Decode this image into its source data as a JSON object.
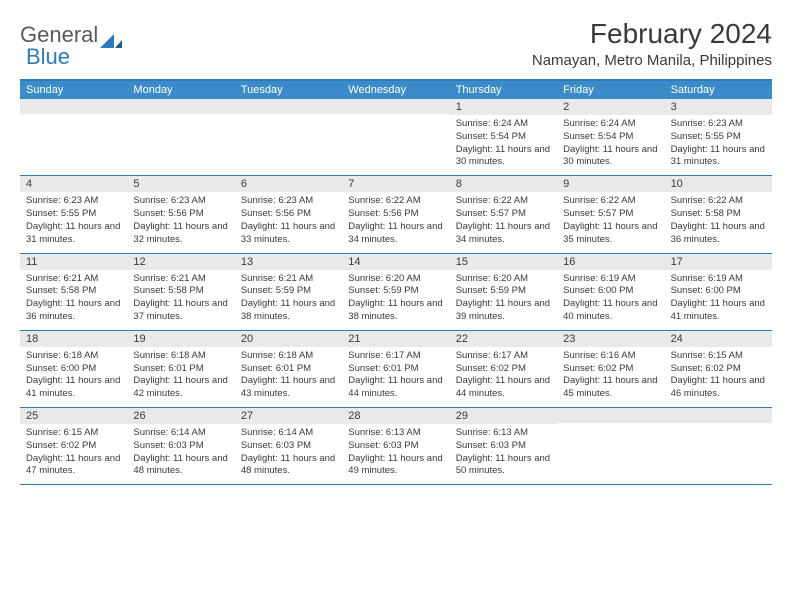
{
  "brand": {
    "part1": "General",
    "part2": "Blue"
  },
  "title": "February 2024",
  "location": "Namayan, Metro Manila, Philippines",
  "colors": {
    "accent": "#3b8bc9",
    "rule": "#2b7bbf",
    "daynum_bg": "#e9e9e9",
    "text": "#3a3a3a"
  },
  "weekdays": [
    "Sunday",
    "Monday",
    "Tuesday",
    "Wednesday",
    "Thursday",
    "Friday",
    "Saturday"
  ],
  "weeks": [
    [
      {
        "n": "",
        "sunrise": "",
        "sunset": "",
        "daylight": ""
      },
      {
        "n": "",
        "sunrise": "",
        "sunset": "",
        "daylight": ""
      },
      {
        "n": "",
        "sunrise": "",
        "sunset": "",
        "daylight": ""
      },
      {
        "n": "",
        "sunrise": "",
        "sunset": "",
        "daylight": ""
      },
      {
        "n": "1",
        "sunrise": "Sunrise: 6:24 AM",
        "sunset": "Sunset: 5:54 PM",
        "daylight": "Daylight: 11 hours and 30 minutes."
      },
      {
        "n": "2",
        "sunrise": "Sunrise: 6:24 AM",
        "sunset": "Sunset: 5:54 PM",
        "daylight": "Daylight: 11 hours and 30 minutes."
      },
      {
        "n": "3",
        "sunrise": "Sunrise: 6:23 AM",
        "sunset": "Sunset: 5:55 PM",
        "daylight": "Daylight: 11 hours and 31 minutes."
      }
    ],
    [
      {
        "n": "4",
        "sunrise": "Sunrise: 6:23 AM",
        "sunset": "Sunset: 5:55 PM",
        "daylight": "Daylight: 11 hours and 31 minutes."
      },
      {
        "n": "5",
        "sunrise": "Sunrise: 6:23 AM",
        "sunset": "Sunset: 5:56 PM",
        "daylight": "Daylight: 11 hours and 32 minutes."
      },
      {
        "n": "6",
        "sunrise": "Sunrise: 6:23 AM",
        "sunset": "Sunset: 5:56 PM",
        "daylight": "Daylight: 11 hours and 33 minutes."
      },
      {
        "n": "7",
        "sunrise": "Sunrise: 6:22 AM",
        "sunset": "Sunset: 5:56 PM",
        "daylight": "Daylight: 11 hours and 34 minutes."
      },
      {
        "n": "8",
        "sunrise": "Sunrise: 6:22 AM",
        "sunset": "Sunset: 5:57 PM",
        "daylight": "Daylight: 11 hours and 34 minutes."
      },
      {
        "n": "9",
        "sunrise": "Sunrise: 6:22 AM",
        "sunset": "Sunset: 5:57 PM",
        "daylight": "Daylight: 11 hours and 35 minutes."
      },
      {
        "n": "10",
        "sunrise": "Sunrise: 6:22 AM",
        "sunset": "Sunset: 5:58 PM",
        "daylight": "Daylight: 11 hours and 36 minutes."
      }
    ],
    [
      {
        "n": "11",
        "sunrise": "Sunrise: 6:21 AM",
        "sunset": "Sunset: 5:58 PM",
        "daylight": "Daylight: 11 hours and 36 minutes."
      },
      {
        "n": "12",
        "sunrise": "Sunrise: 6:21 AM",
        "sunset": "Sunset: 5:58 PM",
        "daylight": "Daylight: 11 hours and 37 minutes."
      },
      {
        "n": "13",
        "sunrise": "Sunrise: 6:21 AM",
        "sunset": "Sunset: 5:59 PM",
        "daylight": "Daylight: 11 hours and 38 minutes."
      },
      {
        "n": "14",
        "sunrise": "Sunrise: 6:20 AM",
        "sunset": "Sunset: 5:59 PM",
        "daylight": "Daylight: 11 hours and 38 minutes."
      },
      {
        "n": "15",
        "sunrise": "Sunrise: 6:20 AM",
        "sunset": "Sunset: 5:59 PM",
        "daylight": "Daylight: 11 hours and 39 minutes."
      },
      {
        "n": "16",
        "sunrise": "Sunrise: 6:19 AM",
        "sunset": "Sunset: 6:00 PM",
        "daylight": "Daylight: 11 hours and 40 minutes."
      },
      {
        "n": "17",
        "sunrise": "Sunrise: 6:19 AM",
        "sunset": "Sunset: 6:00 PM",
        "daylight": "Daylight: 11 hours and 41 minutes."
      }
    ],
    [
      {
        "n": "18",
        "sunrise": "Sunrise: 6:18 AM",
        "sunset": "Sunset: 6:00 PM",
        "daylight": "Daylight: 11 hours and 41 minutes."
      },
      {
        "n": "19",
        "sunrise": "Sunrise: 6:18 AM",
        "sunset": "Sunset: 6:01 PM",
        "daylight": "Daylight: 11 hours and 42 minutes."
      },
      {
        "n": "20",
        "sunrise": "Sunrise: 6:18 AM",
        "sunset": "Sunset: 6:01 PM",
        "daylight": "Daylight: 11 hours and 43 minutes."
      },
      {
        "n": "21",
        "sunrise": "Sunrise: 6:17 AM",
        "sunset": "Sunset: 6:01 PM",
        "daylight": "Daylight: 11 hours and 44 minutes."
      },
      {
        "n": "22",
        "sunrise": "Sunrise: 6:17 AM",
        "sunset": "Sunset: 6:02 PM",
        "daylight": "Daylight: 11 hours and 44 minutes."
      },
      {
        "n": "23",
        "sunrise": "Sunrise: 6:16 AM",
        "sunset": "Sunset: 6:02 PM",
        "daylight": "Daylight: 11 hours and 45 minutes."
      },
      {
        "n": "24",
        "sunrise": "Sunrise: 6:15 AM",
        "sunset": "Sunset: 6:02 PM",
        "daylight": "Daylight: 11 hours and 46 minutes."
      }
    ],
    [
      {
        "n": "25",
        "sunrise": "Sunrise: 6:15 AM",
        "sunset": "Sunset: 6:02 PM",
        "daylight": "Daylight: 11 hours and 47 minutes."
      },
      {
        "n": "26",
        "sunrise": "Sunrise: 6:14 AM",
        "sunset": "Sunset: 6:03 PM",
        "daylight": "Daylight: 11 hours and 48 minutes."
      },
      {
        "n": "27",
        "sunrise": "Sunrise: 6:14 AM",
        "sunset": "Sunset: 6:03 PM",
        "daylight": "Daylight: 11 hours and 48 minutes."
      },
      {
        "n": "28",
        "sunrise": "Sunrise: 6:13 AM",
        "sunset": "Sunset: 6:03 PM",
        "daylight": "Daylight: 11 hours and 49 minutes."
      },
      {
        "n": "29",
        "sunrise": "Sunrise: 6:13 AM",
        "sunset": "Sunset: 6:03 PM",
        "daylight": "Daylight: 11 hours and 50 minutes."
      },
      {
        "n": "",
        "sunrise": "",
        "sunset": "",
        "daylight": ""
      },
      {
        "n": "",
        "sunrise": "",
        "sunset": "",
        "daylight": ""
      }
    ]
  ]
}
